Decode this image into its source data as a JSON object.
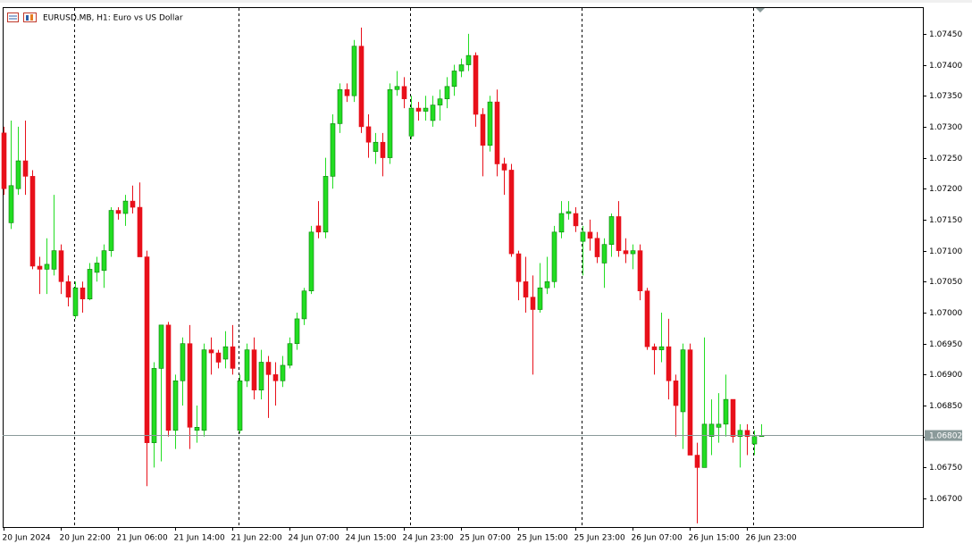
{
  "chart_data": {
    "type": "candlestick",
    "title": "EURUSD.MB, H1:  Euro vs US Dollar",
    "categories": [
      "20 Jun 2024",
      null,
      null,
      null,
      null,
      null,
      null,
      null,
      "20 Jun 22:00",
      null,
      null,
      null,
      null,
      null,
      null,
      null,
      "21 Jun 06:00",
      null,
      null,
      null,
      null,
      null,
      null,
      null,
      "21 Jun 14:00",
      null,
      null,
      null,
      null,
      null,
      null,
      null,
      "21 Jun 22:00",
      null,
      null,
      null,
      null,
      null,
      null,
      null,
      "24 Jun 07:00",
      null,
      null,
      null,
      null,
      null,
      null,
      null,
      "24 Jun 15:00",
      null,
      null,
      null,
      null,
      null,
      null,
      null,
      "24 Jun 23:00",
      null,
      null,
      null,
      null,
      null,
      null,
      null,
      "25 Jun 07:00",
      null,
      null,
      null,
      null,
      null,
      null,
      null,
      "25 Jun 15:00",
      null,
      null,
      null,
      null,
      null,
      null,
      null,
      "25 Jun 23:00",
      null,
      null,
      null,
      null,
      null,
      null,
      null,
      "26 Jun 07:00",
      null,
      null,
      null,
      null,
      null,
      null,
      null,
      "26 Jun 15:00",
      null,
      null,
      null,
      null,
      null,
      null,
      null,
      "26 Jun 23:00",
      null,
      null
    ],
    "open": [
      1.0729,
      1.07145,
      1.072,
      1.07245,
      1.0722,
      1.07075,
      1.0707,
      1.0707,
      1.071,
      1.0705,
      1.06995,
      1.0704,
      1.07022,
      1.07065,
      1.07068,
      1.071,
      1.07165,
      1.0716,
      1.0718,
      1.0717,
      1.0709,
      1.0679,
      1.0691,
      1.0698,
      1.0681,
      1.0689,
      1.0695,
      1.0681,
      1.0681,
      1.0694,
      1.06935,
      1.06925,
      1.06945,
      1.0681,
      1.0689,
      1.0694,
      1.06875,
      1.0692,
      1.069,
      1.0689,
      1.06915,
      1.0695,
      1.0699,
      1.07035,
      1.0714,
      1.0713,
      1.0722,
      1.07305,
      1.0736,
      1.0735,
      1.0743,
      1.073,
      1.0726,
      1.07275,
      1.0725,
      1.0736,
      1.07365,
      1.07285,
      1.0733,
      1.07325,
      1.0731,
      1.07335,
      1.07345,
      1.07365,
      1.0739,
      1.074,
      1.07415,
      1.0732,
      1.0727,
      1.0734,
      1.0724,
      1.0723,
      1.07095,
      1.0705,
      1.07025,
      1.07005,
      1.0704,
      1.0705,
      1.0713,
      1.0716,
      1.0716,
      1.07115,
      1.0713,
      1.0712,
      1.0708,
      1.0711,
      1.07155,
      1.071,
      1.07095,
      1.071,
      1.07035,
      1.06945,
      1.0694,
      1.06945,
      1.0689,
      1.0684,
      1.0694,
      1.0677,
      1.0675,
      1.068,
      1.06815,
      1.0682,
      1.0686,
      1.068,
      1.0681,
      1.06788,
      1.068
    ],
    "high": [
      1.073,
      1.0731,
      1.073,
      1.0731,
      1.0723,
      1.0709,
      1.0712,
      1.0719,
      1.0711,
      1.0706,
      1.0705,
      1.0705,
      1.0708,
      1.0709,
      1.0711,
      1.0717,
      1.0717,
      1.0719,
      1.07205,
      1.0721,
      1.071,
      1.0692,
      1.0698,
      1.06985,
      1.069,
      1.0696,
      1.0698,
      1.0685,
      1.0695,
      1.0696,
      1.0694,
      1.0697,
      1.0698,
      1.069,
      1.0695,
      1.0696,
      1.0694,
      1.0693,
      1.0692,
      1.0693,
      1.0696,
      1.07,
      1.0704,
      1.0714,
      1.0718,
      1.0725,
      1.0732,
      1.0737,
      1.0737,
      1.0744,
      1.0746,
      1.0732,
      1.0729,
      1.0729,
      1.0737,
      1.0739,
      1.0738,
      1.0735,
      1.0734,
      1.0735,
      1.0735,
      1.0736,
      1.0738,
      1.074,
      1.0741,
      1.0745,
      1.0742,
      1.0733,
      1.0735,
      1.0736,
      1.0725,
      1.0724,
      1.071,
      1.0709,
      1.0706,
      1.0708,
      1.0709,
      1.0714,
      1.0718,
      1.0718,
      1.0717,
      1.0714,
      1.0715,
      1.0713,
      1.0712,
      1.0716,
      1.0718,
      1.0712,
      1.0711,
      1.0711,
      1.0704,
      1.0695,
      1.07,
      1.0699,
      1.069,
      1.0695,
      1.0695,
      1.0679,
      1.0696,
      1.0686,
      1.0687,
      1.069,
      1.0686,
      1.0682,
      1.0682,
      1.0681,
      1.0682
    ],
    "low": [
      1.0719,
      1.07135,
      1.0719,
      1.0719,
      1.0707,
      1.0703,
      1.0703,
      1.0706,
      1.0703,
      1.0701,
      1.0699,
      1.07,
      1.0702,
      1.0705,
      1.0704,
      1.0709,
      1.0715,
      1.0714,
      1.0716,
      1.0709,
      1.0672,
      1.0675,
      1.0676,
      1.068,
      1.0678,
      1.0685,
      1.0678,
      1.0679,
      1.068,
      1.069,
      1.0691,
      1.0691,
      1.069,
      1.06805,
      1.0688,
      1.0686,
      1.0686,
      1.0683,
      1.0685,
      1.0688,
      1.0691,
      1.0694,
      1.0698,
      1.0703,
      1.0712,
      1.0712,
      1.072,
      1.0729,
      1.0734,
      1.0734,
      1.0729,
      1.0725,
      1.0724,
      1.0722,
      1.0724,
      1.0735,
      1.0733,
      1.0728,
      1.0731,
      1.0731,
      1.073,
      1.0731,
      1.0733,
      1.0735,
      1.0738,
      1.0739,
      1.073,
      1.0722,
      1.0726,
      1.0722,
      1.0719,
      1.0709,
      1.0702,
      1.07,
      1.069,
      1.07,
      1.0703,
      1.0704,
      1.0712,
      1.0715,
      1.0713,
      1.0706,
      1.071,
      1.0708,
      1.0704,
      1.0709,
      1.0709,
      1.0708,
      1.0707,
      1.0702,
      1.0694,
      1.069,
      1.0692,
      1.0686,
      1.068,
      1.0678,
      1.0677,
      1.0666,
      1.0675,
      1.0677,
      1.0679,
      1.068,
      1.0679,
      1.0675,
      1.0677,
      1.0677,
      1.068
    ],
    "close": [
      1.072,
      1.07205,
      1.07245,
      1.0722,
      1.07075,
      1.0707,
      1.07078,
      1.071,
      1.0705,
      1.07025,
      1.0704,
      1.07022,
      1.0707,
      1.0708,
      1.071,
      1.07165,
      1.0716,
      1.0718,
      1.0717,
      1.0709,
      1.0679,
      1.0691,
      1.0698,
      1.0681,
      1.0689,
      1.0695,
      1.06815,
      1.06815,
      1.0694,
      1.06935,
      1.0692,
      1.06945,
      1.0691,
      1.0689,
      1.0694,
      1.06875,
      1.0692,
      1.069,
      1.0689,
      1.06915,
      1.0695,
      1.0699,
      1.07035,
      1.0713,
      1.0713,
      1.0722,
      1.07305,
      1.0736,
      1.0735,
      1.0743,
      1.073,
      1.07275,
      1.07275,
      1.0725,
      1.0736,
      1.07365,
      1.07345,
      1.0733,
      1.07325,
      1.0733,
      1.07335,
      1.07345,
      1.07365,
      1.0739,
      1.074,
      1.07415,
      1.0732,
      1.0727,
      1.0734,
      1.0724,
      1.0723,
      1.07095,
      1.0705,
      1.07025,
      1.07005,
      1.0704,
      1.0705,
      1.0713,
      1.0716,
      1.07163,
      1.0714,
      1.0713,
      1.0712,
      1.0709,
      1.0711,
      1.07155,
      1.071,
      1.07095,
      1.071,
      1.07035,
      1.06945,
      1.0694,
      1.06945,
      1.0689,
      1.0685,
      1.0694,
      1.0677,
      1.0675,
      1.0682,
      1.0682,
      1.0682,
      1.0686,
      1.068,
      1.0681,
      1.068,
      1.068,
      1.06802
    ],
    "up_color": "#22dd22",
    "down_color": "#e8101a",
    "ylim": [
      1.06654,
      1.07493
    ],
    "yticks": [
      {
        "value": 1.067,
        "label": "1.06700"
      },
      {
        "value": 1.0675,
        "label": "1.06750"
      },
      {
        "value": 1.068,
        "label": "1.06800"
      },
      {
        "value": 1.0685,
        "label": "1.06850"
      },
      {
        "value": 1.069,
        "label": "1.06900"
      },
      {
        "value": 1.0695,
        "label": "1.06950"
      },
      {
        "value": 1.07,
        "label": "1.07000"
      },
      {
        "value": 1.0705,
        "label": "1.07050"
      },
      {
        "value": 1.071,
        "label": "1.07100"
      },
      {
        "value": 1.0715,
        "label": "1.07150"
      },
      {
        "value": 1.072,
        "label": "1.07200"
      },
      {
        "value": 1.0725,
        "label": "1.07250"
      },
      {
        "value": 1.073,
        "label": "1.07300"
      },
      {
        "value": 1.0735,
        "label": "1.07350"
      },
      {
        "value": 1.074,
        "label": "1.07400"
      },
      {
        "value": 1.0745,
        "label": "1.07450"
      }
    ],
    "current_price": 1.06802,
    "current_price_color": "#8a9a9a",
    "grid": false
  }
}
